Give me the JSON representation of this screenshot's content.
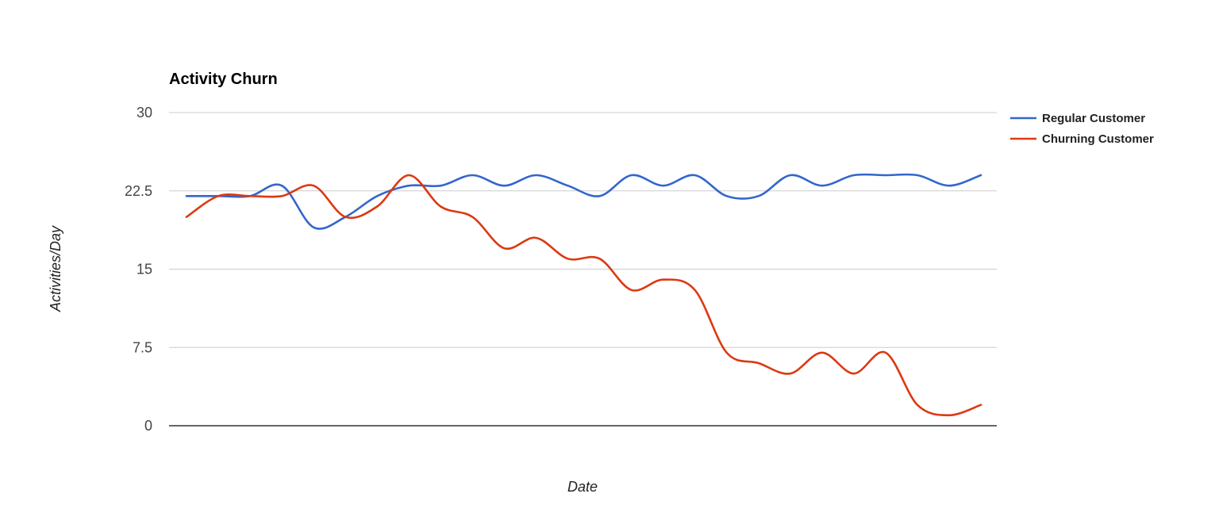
{
  "chart_data": {
    "type": "line",
    "title": "Activity Churn",
    "xlabel": "Date",
    "ylabel": "Activities/Day",
    "ylim": [
      0,
      30
    ],
    "yticks": [
      "30",
      "22.5",
      "15",
      "7.5",
      "0"
    ],
    "grid": true,
    "legend": "right",
    "x": [
      1,
      2,
      3,
      4,
      5,
      6,
      7,
      8,
      9,
      10,
      11,
      12,
      13,
      14,
      15,
      16,
      17,
      18,
      19,
      20,
      21,
      22,
      23,
      24,
      25,
      26
    ],
    "series": [
      {
        "name": "Regular Customer",
        "color": "#3366cc",
        "values": [
          22,
          22,
          22,
          23,
          19,
          20,
          22,
          23,
          23,
          24,
          23,
          24,
          23,
          22,
          24,
          23,
          24,
          22,
          22,
          24,
          23,
          24,
          24,
          24,
          23,
          24
        ]
      },
      {
        "name": "Churning Customer",
        "color": "#dc3912",
        "values": [
          20,
          22,
          22,
          22,
          23,
          20,
          21,
          24,
          21,
          20,
          17,
          18,
          16,
          16,
          13,
          14,
          13,
          7,
          6,
          5,
          7,
          5,
          7,
          2,
          1,
          2
        ]
      }
    ]
  }
}
